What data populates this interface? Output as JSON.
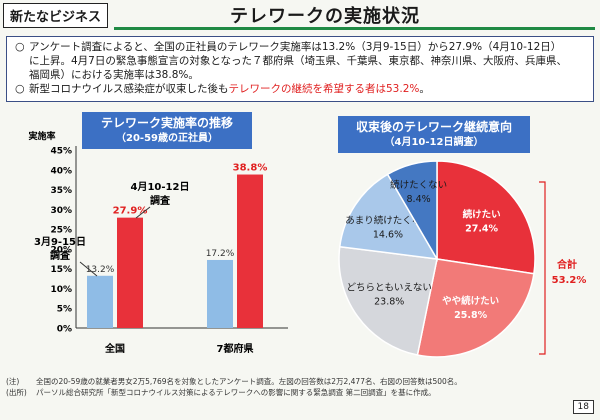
{
  "header": {
    "tag": "新たなビジネス",
    "title": "テレワークの実施状況",
    "accent_color": "#1f8a44"
  },
  "summary": {
    "bullet_icon": "circle-outline-icon",
    "p1_line1": "アンケート調査によると、全国の正社員のテレワーク実施率は13.2%（3月9-15日）から27.9%（4月10-12日）",
    "p1_line2": "に上昇。4月7日の緊急事態宣言の対象となった７都府県（埼玉県、千葉県、東京都、神奈川県、大阪府、兵庫県、",
    "p1_line3": "福岡県）における実施率は38.8%。",
    "p2_before": "新型コロナウイルス感染症が収束した後も",
    "p2_highlight": "テレワークの継続を希望する者は53.2%",
    "p2_after": "。"
  },
  "chart_data": [
    {
      "type": "bar",
      "title": "テレワーク実施率の推移",
      "subtitle": "（20-59歳の正社員）",
      "ylabel": "実施率",
      "ylim": [
        0,
        45
      ],
      "yticks": [
        "0%",
        "5%",
        "10%",
        "15%",
        "20%",
        "25%",
        "30%",
        "35%",
        "40%",
        "45%"
      ],
      "categories": [
        "全国",
        "7都府県"
      ],
      "series": [
        {
          "name": "3月9-15日 調査",
          "values": [
            13.2,
            17.2
          ],
          "labels": [
            "13.2%",
            "17.2%"
          ],
          "color": "#8fbce6"
        },
        {
          "name": "4月10-12日 調査",
          "values": [
            27.9,
            38.8
          ],
          "labels": [
            "27.9%",
            "38.8%"
          ],
          "color": "#e8313a"
        }
      ],
      "annotations": {
        "march": [
          "3月9-15日",
          "調査"
        ],
        "april": [
          "4月10-12日",
          "調査"
        ]
      },
      "grid": false
    },
    {
      "type": "pie",
      "title": "収束後のテレワーク継続意向",
      "subtitle": "（4月10-12日調査）",
      "slices": [
        {
          "label": "続けたい",
          "value": 27.4,
          "value_label": "27.4%",
          "color": "#e8313a",
          "text_color": "#ffffff",
          "bold": true
        },
        {
          "label": "やや続けたい",
          "value": 25.8,
          "value_label": "25.8%",
          "color": "#f27a78",
          "text_color": "#ffffff",
          "bold": true
        },
        {
          "label": "どちらともいえない",
          "value": 23.8,
          "value_label": "23.8%",
          "color": "#d5d7dc",
          "text_color": "#1a1a1a",
          "bold": false
        },
        {
          "label": "あまり続けたくない",
          "value": 14.6,
          "value_label": "14.6%",
          "color": "#a9c8ea",
          "text_color": "#1a1a1a",
          "bold": false
        },
        {
          "label": "続けたくない",
          "value": 8.4,
          "value_label": "8.4%",
          "color": "#4478c2",
          "text_color": "#1a1a1a",
          "bold": false
        }
      ],
      "total_label": "合計",
      "total_value": "53.2%",
      "total_color": "#e02020"
    }
  ],
  "notes": {
    "n1_key": "(注)",
    "n1_text": "全国の20-59歳の就業者男女2万5,769名を対象としたアンケート調査。左図の回答数は2万2,477名、右図の回答数は500名。",
    "n2_key": "(出所)",
    "n2_text": "パーソル総合研究所「新型コロナウイルス対策によるテレワークへの影響に関する緊急調査 第二回調査」を基に作成。"
  },
  "page_number": "18",
  "colors": {
    "panel_header": "#3c70c4",
    "summary_border": "#3b4f86",
    "highlight_red": "#e02020"
  }
}
